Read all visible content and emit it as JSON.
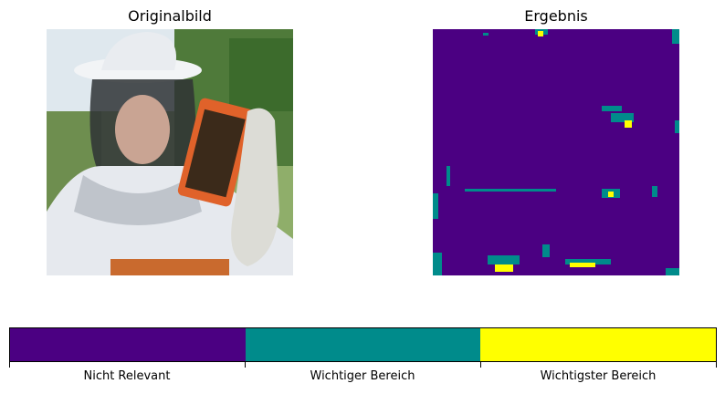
{
  "panels": {
    "left_title": "Originalbild",
    "right_title": "Ergebnis"
  },
  "colors": {
    "not_relevant": "#4b0082",
    "important": "#008b8b",
    "most_important": "#ffff00"
  },
  "chart_data": {
    "type": "heatmap",
    "title": "",
    "colorbar": {
      "categories": [
        "Nicht Relevant",
        "Wichtiger Bereich",
        "Wichtigster Bereich"
      ],
      "colors": [
        "#4b0082",
        "#008b8b",
        "#ffff00"
      ]
    }
  }
}
